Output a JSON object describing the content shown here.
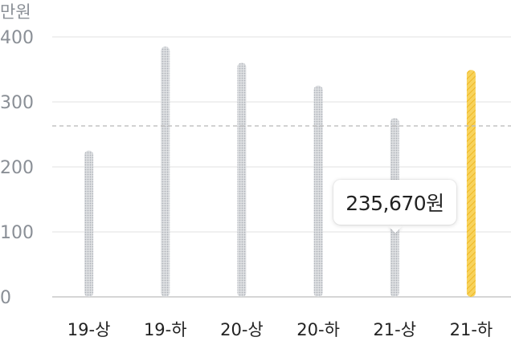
{
  "chart_data": {
    "type": "bar",
    "unit_label": "만원",
    "categories": [
      "19-상",
      "19-하",
      "20-상",
      "20-하",
      "21-상",
      "21-하"
    ],
    "values": [
      225,
      385,
      360,
      325,
      275,
      349
    ],
    "highlight_index": 5,
    "average_line": 263,
    "yticks": [
      0,
      100,
      200,
      300,
      400
    ],
    "ylim": [
      0,
      400
    ],
    "grid": true,
    "colors": {
      "bar": "#c9ccd1",
      "bar_highlight": "#f6c944",
      "grid": "#e8e8e8",
      "average": "#bdbdbd",
      "tick_text": "#8a8f96",
      "category_text": "#222222"
    }
  },
  "tooltip": {
    "text": "235,670원"
  }
}
